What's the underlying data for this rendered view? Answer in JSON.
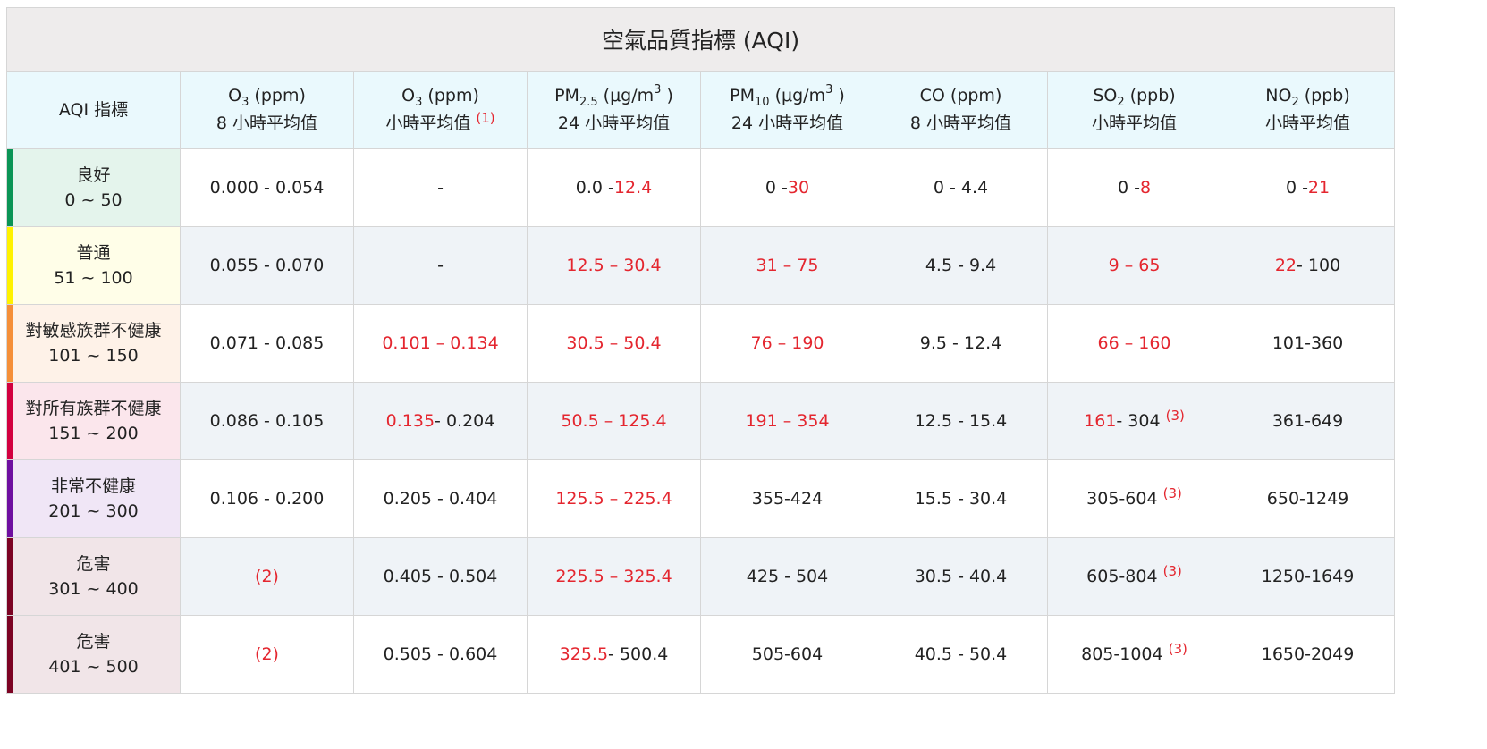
{
  "title": "空氣品質指標 (AQI)",
  "header": {
    "aqi": "AQI 指標",
    "cols": [
      {
        "pre": "O",
        "sub": "3",
        "post": " (ppm)",
        "sup": "",
        "post2": "",
        "line2": "8 小時平均值",
        "note": ""
      },
      {
        "pre": "O",
        "sub": "3",
        "post": " (ppm)",
        "sup": "",
        "post2": "",
        "line2": "小時平均值 ",
        "note": "(1)"
      },
      {
        "pre": "PM",
        "sub": "2.5",
        "post": " (μg/m",
        "sup": "3",
        "post2": " )",
        "line2": "24 小時平均值",
        "note": ""
      },
      {
        "pre": "PM",
        "sub": "10",
        "post": " (μg/m",
        "sup": "3",
        "post2": " )",
        "line2": "24 小時平均值",
        "note": ""
      },
      {
        "pre": "CO (ppm)",
        "sub": "",
        "post": "",
        "sup": "",
        "post2": "",
        "line2": "8 小時平均值",
        "note": ""
      },
      {
        "pre": "SO",
        "sub": "2",
        "post": " (ppb)",
        "sup": "",
        "post2": "",
        "line2": "小時平均值",
        "note": ""
      },
      {
        "pre": "NO",
        "sub": "2",
        "post": " (ppb)",
        "sup": "",
        "post2": "",
        "line2": "小時平均值",
        "note": ""
      }
    ]
  },
  "colors": {
    "good": "#0a9455",
    "moderate": "#fff200",
    "usg": "#f58f38",
    "unhealthy": "#d2003f",
    "very_unhealthy": "#6e0fa0",
    "hazardous": "#7c0323",
    "red_text": "#e4262f"
  },
  "rows": [
    {
      "level": "良好",
      "range": "0 ~ 50",
      "bar": "#0a9455",
      "bg": "#e4f4ec",
      "cells": [
        [
          {
            "t": "0.000 - 0.054"
          }
        ],
        [
          {
            "t": "-"
          }
        ],
        [
          {
            "t": "0.0 -"
          },
          {
            "t": "12.4",
            "r": true
          }
        ],
        [
          {
            "t": "0 -"
          },
          {
            "t": "30",
            "r": true
          }
        ],
        [
          {
            "t": "0 - 4.4"
          }
        ],
        [
          {
            "t": "0 -"
          },
          {
            "t": "8",
            "r": true
          }
        ],
        [
          {
            "t": "0 -"
          },
          {
            "t": "21",
            "r": true
          }
        ]
      ]
    },
    {
      "level": "普通",
      "range": "51 ~ 100",
      "bar": "#fff200",
      "bg": "#fffee8",
      "cells": [
        [
          {
            "t": "0.055 - 0.070"
          }
        ],
        [
          {
            "t": "-"
          }
        ],
        [
          {
            "t": "12.5 – 30.4",
            "r": true
          }
        ],
        [
          {
            "t": "31 – 75",
            "r": true
          }
        ],
        [
          {
            "t": "4.5 - 9.4"
          }
        ],
        [
          {
            "t": "9 – 65",
            "r": true
          }
        ],
        [
          {
            "t": "22",
            "r": true
          },
          {
            "t": "- 100"
          }
        ]
      ]
    },
    {
      "level": "對敏感族群不健康",
      "range": "101 ~ 150",
      "bar": "#f58f38",
      "bg": "#fef2e8",
      "cells": [
        [
          {
            "t": "0.071 - 0.085"
          }
        ],
        [
          {
            "t": "0.101 – 0.134",
            "r": true
          }
        ],
        [
          {
            "t": "30.5 – 50.4",
            "r": true
          }
        ],
        [
          {
            "t": "76 – 190",
            "r": true
          }
        ],
        [
          {
            "t": "9.5 - 12.4"
          }
        ],
        [
          {
            "t": "66 – 160",
            "r": true
          }
        ],
        [
          {
            "t": "101-360"
          }
        ]
      ]
    },
    {
      "level": "對所有族群不健康",
      "range": "151 ~ 200",
      "bar": "#d2003f",
      "bg": "#fbe6ec",
      "cells": [
        [
          {
            "t": "0.086 - 0.105"
          }
        ],
        [
          {
            "t": "0.135",
            "r": true
          },
          {
            "t": "- 0.204"
          }
        ],
        [
          {
            "t": "50.5 – 125.4",
            "r": true
          }
        ],
        [
          {
            "t": "191 – 354",
            "r": true
          }
        ],
        [
          {
            "t": "12.5 - 15.4"
          }
        ],
        [
          {
            "t": "161",
            "r": true
          },
          {
            "t": "- 304 "
          },
          {
            "t": "(3)",
            "n": true
          }
        ],
        [
          {
            "t": "361-649"
          }
        ]
      ]
    },
    {
      "level": "非常不健康",
      "range": "201 ~ 300",
      "bar": "#6e0fa0",
      "bg": "#f0e6f6",
      "cells": [
        [
          {
            "t": "0.106 - 0.200"
          }
        ],
        [
          {
            "t": "0.205 - 0.404"
          }
        ],
        [
          {
            "t": "125.5 – 225.4",
            "r": true
          }
        ],
        [
          {
            "t": "355-424"
          }
        ],
        [
          {
            "t": "15.5 - 30.4"
          }
        ],
        [
          {
            "t": "305-604 "
          },
          {
            "t": "(3)",
            "n": true
          }
        ],
        [
          {
            "t": "650-1249"
          }
        ]
      ]
    },
    {
      "level": "危害",
      "range": "301 ~ 400",
      "bar": "#7c0323",
      "bg": "#f1e5e8",
      "cells": [
        [
          {
            "t": "(2)",
            "r": true
          }
        ],
        [
          {
            "t": "0.405 - 0.504"
          }
        ],
        [
          {
            "t": "225.5 – 325.4",
            "r": true
          }
        ],
        [
          {
            "t": "425 - 504"
          }
        ],
        [
          {
            "t": "30.5 - 40.4"
          }
        ],
        [
          {
            "t": "605-804 "
          },
          {
            "t": "(3)",
            "n": true
          }
        ],
        [
          {
            "t": "1250-1649"
          }
        ]
      ]
    },
    {
      "level": "危害",
      "range": "401 ~ 500",
      "bar": "#7c0323",
      "bg": "#f1e5e8",
      "cells": [
        [
          {
            "t": "(2)",
            "r": true
          }
        ],
        [
          {
            "t": "0.505 - 0.604"
          }
        ],
        [
          {
            "t": "325.5",
            "r": true
          },
          {
            "t": "- 500.4"
          }
        ],
        [
          {
            "t": "505-604"
          }
        ],
        [
          {
            "t": "40.5 - 50.4"
          }
        ],
        [
          {
            "t": "805-1004 "
          },
          {
            "t": "(3)",
            "n": true
          }
        ],
        [
          {
            "t": "1650-2049"
          }
        ]
      ]
    }
  ]
}
